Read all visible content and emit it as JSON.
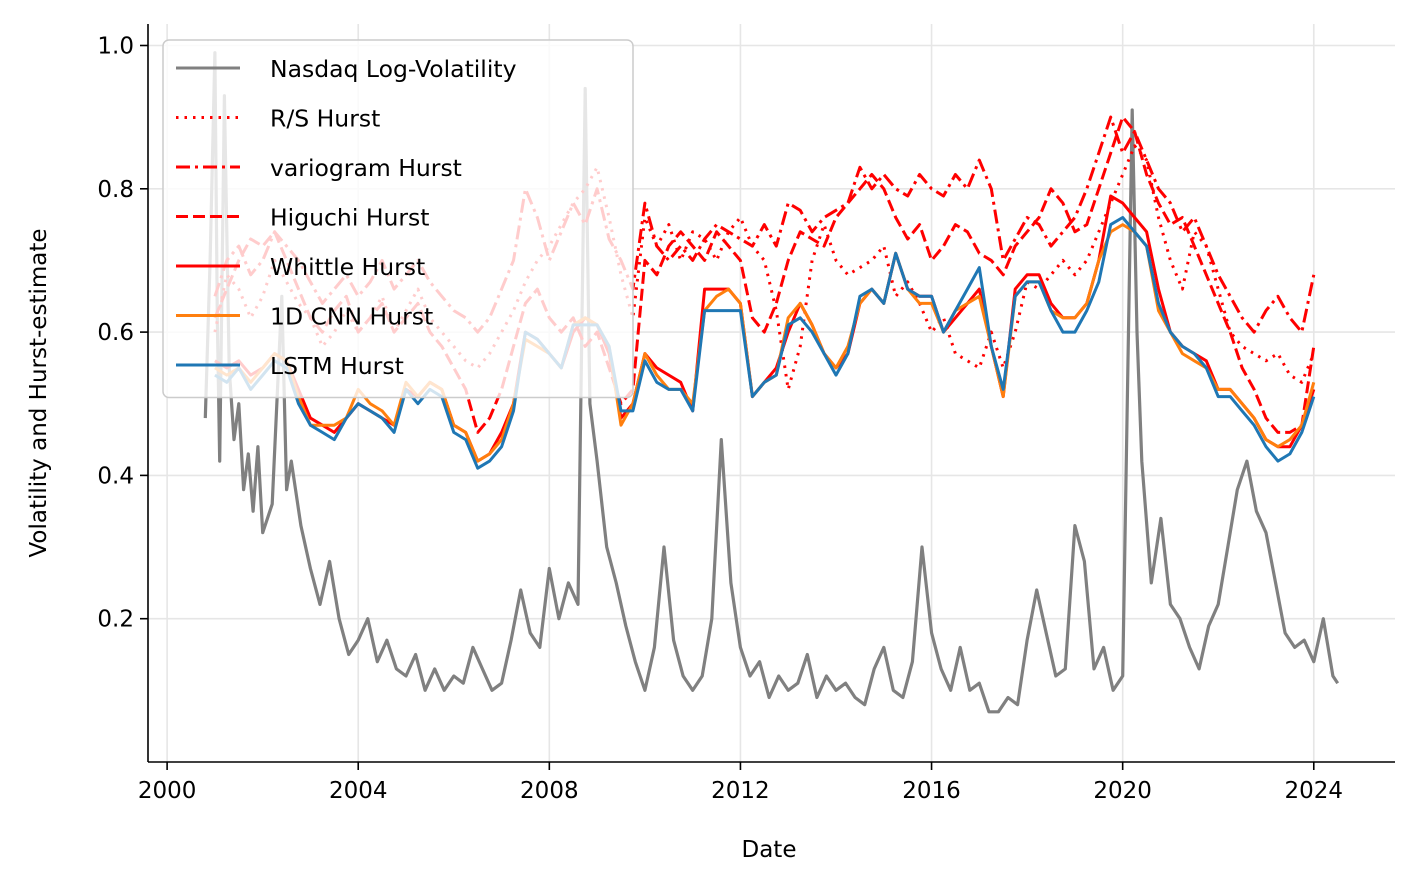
{
  "chart_data": {
    "type": "line",
    "xlabel": "Date",
    "ylabel": "Volatility and Hurst-estimate",
    "xlim": [
      1999.6,
      2025.7
    ],
    "ylim": [
      0.0,
      1.03
    ],
    "x_ticks": [
      2000,
      2004,
      2008,
      2012,
      2016,
      2020,
      2024
    ],
    "x_tick_labels": [
      "2000",
      "2004",
      "2008",
      "2012",
      "2016",
      "2020",
      "2024"
    ],
    "y_ticks": [
      0.2,
      0.4,
      0.6,
      0.8,
      1.0
    ],
    "y_tick_labels": [
      "0.2",
      "0.4",
      "0.6",
      "0.8",
      "1.0"
    ],
    "grid": true,
    "legend_position": "top-left",
    "volatility_series": {
      "name": "Nasdaq Log-Volatility",
      "color": "#808080",
      "x": [
        2000.8,
        2000.9,
        2001.0,
        2001.05,
        2001.1,
        2001.2,
        2001.3,
        2001.4,
        2001.5,
        2001.6,
        2001.7,
        2001.8,
        2001.9,
        2002.0,
        2002.2,
        2002.4,
        2002.5,
        2002.6,
        2002.8,
        2003.0,
        2003.2,
        2003.4,
        2003.6,
        2003.8,
        2004.0,
        2004.2,
        2004.4,
        2004.6,
        2004.8,
        2005.0,
        2005.2,
        2005.4,
        2005.6,
        2005.8,
        2006.0,
        2006.2,
        2006.4,
        2006.6,
        2006.8,
        2007.0,
        2007.2,
        2007.4,
        2007.6,
        2007.8,
        2008.0,
        2008.2,
        2008.4,
        2008.6,
        2008.75,
        2008.85,
        2009.0,
        2009.2,
        2009.4,
        2009.6,
        2009.8,
        2010.0,
        2010.2,
        2010.4,
        2010.6,
        2010.8,
        2011.0,
        2011.2,
        2011.4,
        2011.6,
        2011.8,
        2012.0,
        2012.2,
        2012.4,
        2012.6,
        2012.8,
        2013.0,
        2013.2,
        2013.4,
        2013.6,
        2013.8,
        2014.0,
        2014.2,
        2014.4,
        2014.6,
        2014.8,
        2015.0,
        2015.2,
        2015.4,
        2015.6,
        2015.8,
        2016.0,
        2016.2,
        2016.4,
        2016.6,
        2016.8,
        2017.0,
        2017.2,
        2017.4,
        2017.6,
        2017.8,
        2018.0,
        2018.2,
        2018.4,
        2018.6,
        2018.8,
        2019.0,
        2019.2,
        2019.4,
        2019.6,
        2019.8,
        2020.0,
        2020.2,
        2020.3,
        2020.4,
        2020.6,
        2020.8,
        2021.0,
        2021.2,
        2021.4,
        2021.6,
        2021.8,
        2022.0,
        2022.2,
        2022.4,
        2022.6,
        2022.8,
        2023.0,
        2023.2,
        2023.4,
        2023.6,
        2023.8,
        2024.0,
        2024.2,
        2024.4,
        2024.5
      ],
      "y": [
        0.48,
        0.7,
        0.99,
        0.62,
        0.42,
        0.93,
        0.55,
        0.45,
        0.5,
        0.38,
        0.43,
        0.35,
        0.44,
        0.32,
        0.36,
        0.65,
        0.38,
        0.42,
        0.33,
        0.27,
        0.22,
        0.28,
        0.2,
        0.15,
        0.17,
        0.2,
        0.14,
        0.17,
        0.13,
        0.12,
        0.15,
        0.1,
        0.13,
        0.1,
        0.12,
        0.11,
        0.16,
        0.13,
        0.1,
        0.11,
        0.17,
        0.24,
        0.18,
        0.16,
        0.27,
        0.2,
        0.25,
        0.22,
        0.94,
        0.5,
        0.42,
        0.3,
        0.25,
        0.19,
        0.14,
        0.1,
        0.16,
        0.3,
        0.17,
        0.12,
        0.1,
        0.12,
        0.2,
        0.45,
        0.25,
        0.16,
        0.12,
        0.14,
        0.09,
        0.12,
        0.1,
        0.11,
        0.15,
        0.09,
        0.12,
        0.1,
        0.11,
        0.09,
        0.08,
        0.13,
        0.16,
        0.1,
        0.09,
        0.14,
        0.3,
        0.18,
        0.13,
        0.1,
        0.16,
        0.1,
        0.11,
        0.07,
        0.07,
        0.09,
        0.08,
        0.17,
        0.24,
        0.18,
        0.12,
        0.13,
        0.33,
        0.28,
        0.13,
        0.16,
        0.1,
        0.12,
        0.91,
        0.6,
        0.42,
        0.25,
        0.34,
        0.22,
        0.2,
        0.16,
        0.13,
        0.19,
        0.22,
        0.3,
        0.38,
        0.42,
        0.35,
        0.32,
        0.25,
        0.18,
        0.16,
        0.17,
        0.14,
        0.2,
        0.12,
        0.11
      ]
    },
    "hurst_x": [
      2001.0,
      2001.25,
      2001.5,
      2001.75,
      2002.0,
      2002.25,
      2002.5,
      2002.75,
      2003.0,
      2003.25,
      2003.5,
      2003.75,
      2004.0,
      2004.25,
      2004.5,
      2004.75,
      2005.0,
      2005.25,
      2005.5,
      2005.75,
      2006.0,
      2006.25,
      2006.5,
      2006.75,
      2007.0,
      2007.25,
      2007.5,
      2007.75,
      2008.0,
      2008.25,
      2008.5,
      2008.75,
      2009.0,
      2009.25,
      2009.5,
      2009.75,
      2010.0,
      2010.25,
      2010.5,
      2010.75,
      2011.0,
      2011.25,
      2011.5,
      2011.75,
      2012.0,
      2012.25,
      2012.5,
      2012.75,
      2013.0,
      2013.25,
      2013.5,
      2013.75,
      2014.0,
      2014.25,
      2014.5,
      2014.75,
      2015.0,
      2015.25,
      2015.5,
      2015.75,
      2016.0,
      2016.25,
      2016.5,
      2016.75,
      2017.0,
      2017.25,
      2017.5,
      2017.75,
      2018.0,
      2018.25,
      2018.5,
      2018.75,
      2019.0,
      2019.25,
      2019.5,
      2019.75,
      2020.0,
      2020.25,
      2020.5,
      2020.75,
      2021.0,
      2021.25,
      2021.5,
      2021.75,
      2022.0,
      2022.25,
      2022.5,
      2022.75,
      2023.0,
      2023.25,
      2023.5,
      2023.75,
      2024.0
    ],
    "series": [
      {
        "name": "R/S Hurst",
        "color": "#ff0000",
        "dash": "dotted",
        "values": [
          0.6,
          0.68,
          0.66,
          0.62,
          0.65,
          0.7,
          0.67,
          0.64,
          0.62,
          0.58,
          0.6,
          0.63,
          0.6,
          0.62,
          0.65,
          0.6,
          0.63,
          0.66,
          0.62,
          0.6,
          0.58,
          0.56,
          0.55,
          0.57,
          0.6,
          0.63,
          0.67,
          0.7,
          0.72,
          0.75,
          0.78,
          0.8,
          0.83,
          0.76,
          0.68,
          0.62,
          0.76,
          0.72,
          0.75,
          0.7,
          0.74,
          0.73,
          0.7,
          0.74,
          0.76,
          0.72,
          0.7,
          0.63,
          0.52,
          0.58,
          0.7,
          0.75,
          0.7,
          0.68,
          0.69,
          0.7,
          0.72,
          0.65,
          0.67,
          0.64,
          0.6,
          0.62,
          0.57,
          0.56,
          0.55,
          0.6,
          0.55,
          0.6,
          0.67,
          0.66,
          0.68,
          0.7,
          0.68,
          0.7,
          0.74,
          0.78,
          0.82,
          0.86,
          0.84,
          0.76,
          0.7,
          0.66,
          0.74,
          0.72,
          0.66,
          0.6,
          0.58,
          0.57,
          0.56,
          0.57,
          0.54,
          0.53,
          0.57
        ]
      },
      {
        "name": "variogram Hurst",
        "color": "#ff0000",
        "dash": "dashdot",
        "values": [
          0.65,
          0.7,
          0.72,
          0.68,
          0.7,
          0.74,
          0.72,
          0.7,
          0.67,
          0.64,
          0.66,
          0.68,
          0.65,
          0.67,
          0.7,
          0.66,
          0.68,
          0.7,
          0.67,
          0.65,
          0.63,
          0.62,
          0.6,
          0.62,
          0.66,
          0.7,
          0.8,
          0.76,
          0.7,
          0.74,
          0.78,
          0.75,
          0.8,
          0.73,
          0.7,
          0.66,
          0.78,
          0.72,
          0.7,
          0.72,
          0.7,
          0.73,
          0.75,
          0.74,
          0.73,
          0.72,
          0.75,
          0.72,
          0.78,
          0.77,
          0.74,
          0.76,
          0.77,
          0.78,
          0.83,
          0.8,
          0.82,
          0.8,
          0.79,
          0.82,
          0.8,
          0.79,
          0.82,
          0.8,
          0.84,
          0.8,
          0.7,
          0.73,
          0.76,
          0.75,
          0.72,
          0.74,
          0.76,
          0.8,
          0.85,
          0.9,
          0.85,
          0.88,
          0.84,
          0.8,
          0.78,
          0.74,
          0.76,
          0.72,
          0.68,
          0.65,
          0.62,
          0.6,
          0.63,
          0.65,
          0.62,
          0.6,
          0.68
        ]
      },
      {
        "name": "Higuchi Hurst",
        "color": "#ff0000",
        "dash": "dashed",
        "values": [
          0.62,
          0.66,
          0.7,
          0.73,
          0.72,
          0.74,
          0.7,
          0.66,
          0.62,
          0.6,
          0.63,
          0.65,
          0.6,
          0.62,
          0.64,
          0.6,
          0.62,
          0.64,
          0.6,
          0.58,
          0.55,
          0.52,
          0.46,
          0.48,
          0.52,
          0.58,
          0.64,
          0.66,
          0.62,
          0.6,
          0.62,
          0.58,
          0.6,
          0.55,
          0.5,
          0.52,
          0.7,
          0.68,
          0.72,
          0.74,
          0.72,
          0.7,
          0.74,
          0.72,
          0.7,
          0.62,
          0.6,
          0.64,
          0.7,
          0.74,
          0.73,
          0.72,
          0.76,
          0.78,
          0.8,
          0.82,
          0.8,
          0.76,
          0.73,
          0.75,
          0.7,
          0.72,
          0.75,
          0.74,
          0.71,
          0.7,
          0.68,
          0.72,
          0.74,
          0.76,
          0.8,
          0.78,
          0.74,
          0.75,
          0.8,
          0.85,
          0.9,
          0.88,
          0.82,
          0.78,
          0.75,
          0.76,
          0.72,
          0.68,
          0.64,
          0.6,
          0.55,
          0.52,
          0.48,
          0.46,
          0.46,
          0.47,
          0.58
        ]
      },
      {
        "name": "Whittle Hurst",
        "color": "#ff0000",
        "dash": "solid",
        "values": [
          0.56,
          0.55,
          0.56,
          0.54,
          0.55,
          0.57,
          0.56,
          0.52,
          0.48,
          0.47,
          0.46,
          0.48,
          0.5,
          0.49,
          0.48,
          0.47,
          0.52,
          0.51,
          0.53,
          0.52,
          0.47,
          0.46,
          0.42,
          0.43,
          0.46,
          0.5,
          0.6,
          0.59,
          0.57,
          0.55,
          0.6,
          0.62,
          0.61,
          0.57,
          0.48,
          0.5,
          0.57,
          0.55,
          0.54,
          0.53,
          0.49,
          0.66,
          0.66,
          0.66,
          0.64,
          0.51,
          0.53,
          0.55,
          0.6,
          0.64,
          0.61,
          0.57,
          0.55,
          0.57,
          0.64,
          0.66,
          0.64,
          0.71,
          0.66,
          0.65,
          0.65,
          0.6,
          0.62,
          0.64,
          0.66,
          0.58,
          0.51,
          0.66,
          0.68,
          0.68,
          0.64,
          0.62,
          0.62,
          0.64,
          0.7,
          0.79,
          0.78,
          0.76,
          0.74,
          0.66,
          0.6,
          0.58,
          0.57,
          0.56,
          0.52,
          0.52,
          0.5,
          0.48,
          0.45,
          0.44,
          0.44,
          0.47,
          0.52
        ]
      },
      {
        "name": "1D CNN Hurst",
        "color": "#ff7f0e",
        "dash": "solid",
        "values": [
          0.55,
          0.54,
          0.55,
          0.53,
          0.55,
          0.57,
          0.56,
          0.51,
          0.47,
          0.47,
          0.47,
          0.48,
          0.52,
          0.5,
          0.49,
          0.47,
          0.53,
          0.51,
          0.53,
          0.52,
          0.47,
          0.46,
          0.42,
          0.43,
          0.45,
          0.5,
          0.59,
          0.58,
          0.57,
          0.55,
          0.61,
          0.62,
          0.61,
          0.58,
          0.47,
          0.5,
          0.57,
          0.54,
          0.52,
          0.52,
          0.5,
          0.63,
          0.65,
          0.66,
          0.64,
          0.51,
          0.53,
          0.54,
          0.62,
          0.64,
          0.61,
          0.57,
          0.55,
          0.58,
          0.64,
          0.66,
          0.64,
          0.71,
          0.66,
          0.64,
          0.64,
          0.6,
          0.63,
          0.64,
          0.65,
          0.58,
          0.51,
          0.65,
          0.67,
          0.67,
          0.63,
          0.62,
          0.62,
          0.64,
          0.7,
          0.74,
          0.75,
          0.74,
          0.72,
          0.63,
          0.6,
          0.57,
          0.56,
          0.55,
          0.52,
          0.52,
          0.5,
          0.48,
          0.45,
          0.44,
          0.45,
          0.47,
          0.53
        ]
      },
      {
        "name": "LSTM Hurst",
        "color": "#1f77b4",
        "dash": "solid",
        "values": [
          0.54,
          0.53,
          0.55,
          0.52,
          0.54,
          0.56,
          0.55,
          0.5,
          0.47,
          0.46,
          0.45,
          0.48,
          0.5,
          0.49,
          0.48,
          0.46,
          0.52,
          0.5,
          0.52,
          0.51,
          0.46,
          0.45,
          0.41,
          0.42,
          0.44,
          0.49,
          0.6,
          0.59,
          0.57,
          0.55,
          0.61,
          0.61,
          0.61,
          0.58,
          0.49,
          0.49,
          0.56,
          0.53,
          0.52,
          0.52,
          0.49,
          0.63,
          0.63,
          0.63,
          0.63,
          0.51,
          0.53,
          0.54,
          0.61,
          0.62,
          0.6,
          0.57,
          0.54,
          0.57,
          0.65,
          0.66,
          0.64,
          0.71,
          0.66,
          0.65,
          0.65,
          0.6,
          0.63,
          0.66,
          0.69,
          0.58,
          0.52,
          0.65,
          0.67,
          0.67,
          0.63,
          0.6,
          0.6,
          0.63,
          0.67,
          0.75,
          0.76,
          0.74,
          0.72,
          0.64,
          0.6,
          0.58,
          0.57,
          0.55,
          0.51,
          0.51,
          0.49,
          0.47,
          0.44,
          0.42,
          0.43,
          0.46,
          0.51
        ]
      }
    ]
  }
}
